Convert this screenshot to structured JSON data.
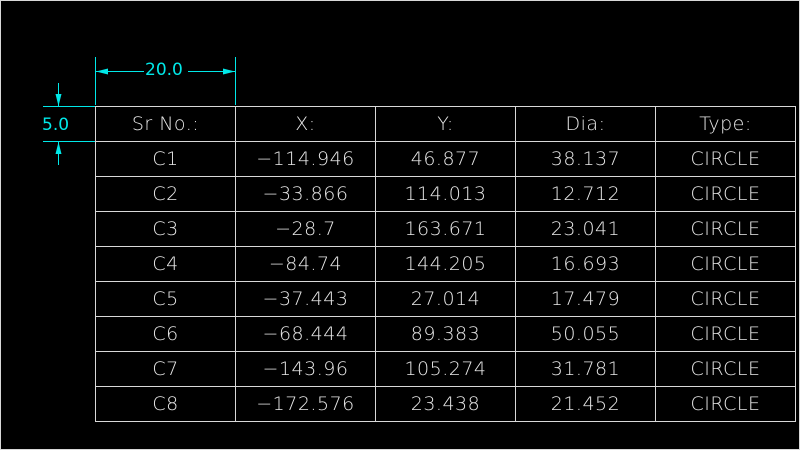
{
  "dimensions": {
    "width_label": "20.0",
    "height_label": "5.0",
    "color": "#00e8e8"
  },
  "table": {
    "headers": [
      "Sr No.:",
      "X:",
      "Y:",
      "Dia:",
      "Type:"
    ],
    "rows": [
      [
        "C1",
        "−114.946",
        "46.877",
        "38.137",
        "CIRCLE"
      ],
      [
        "C2",
        "−33.866",
        "114.013",
        "12.712",
        "CIRCLE"
      ],
      [
        "C3",
        "−28.7",
        "163.671",
        "23.041",
        "CIRCLE"
      ],
      [
        "C4",
        "−84.74",
        "144.205",
        "16.693",
        "CIRCLE"
      ],
      [
        "C5",
        "−37.443",
        "27.014",
        "17.479",
        "CIRCLE"
      ],
      [
        "C6",
        "−68.444",
        "89.383",
        "50.055",
        "CIRCLE"
      ],
      [
        "C7",
        "−143.96",
        "105.274",
        "31.781",
        "CIRCLE"
      ],
      [
        "C8",
        "−172.576",
        "23.438",
        "21.452",
        "CIRCLE"
      ]
    ],
    "line_color": "#d8d8d8",
    "text_color": "#e8e8e8"
  }
}
